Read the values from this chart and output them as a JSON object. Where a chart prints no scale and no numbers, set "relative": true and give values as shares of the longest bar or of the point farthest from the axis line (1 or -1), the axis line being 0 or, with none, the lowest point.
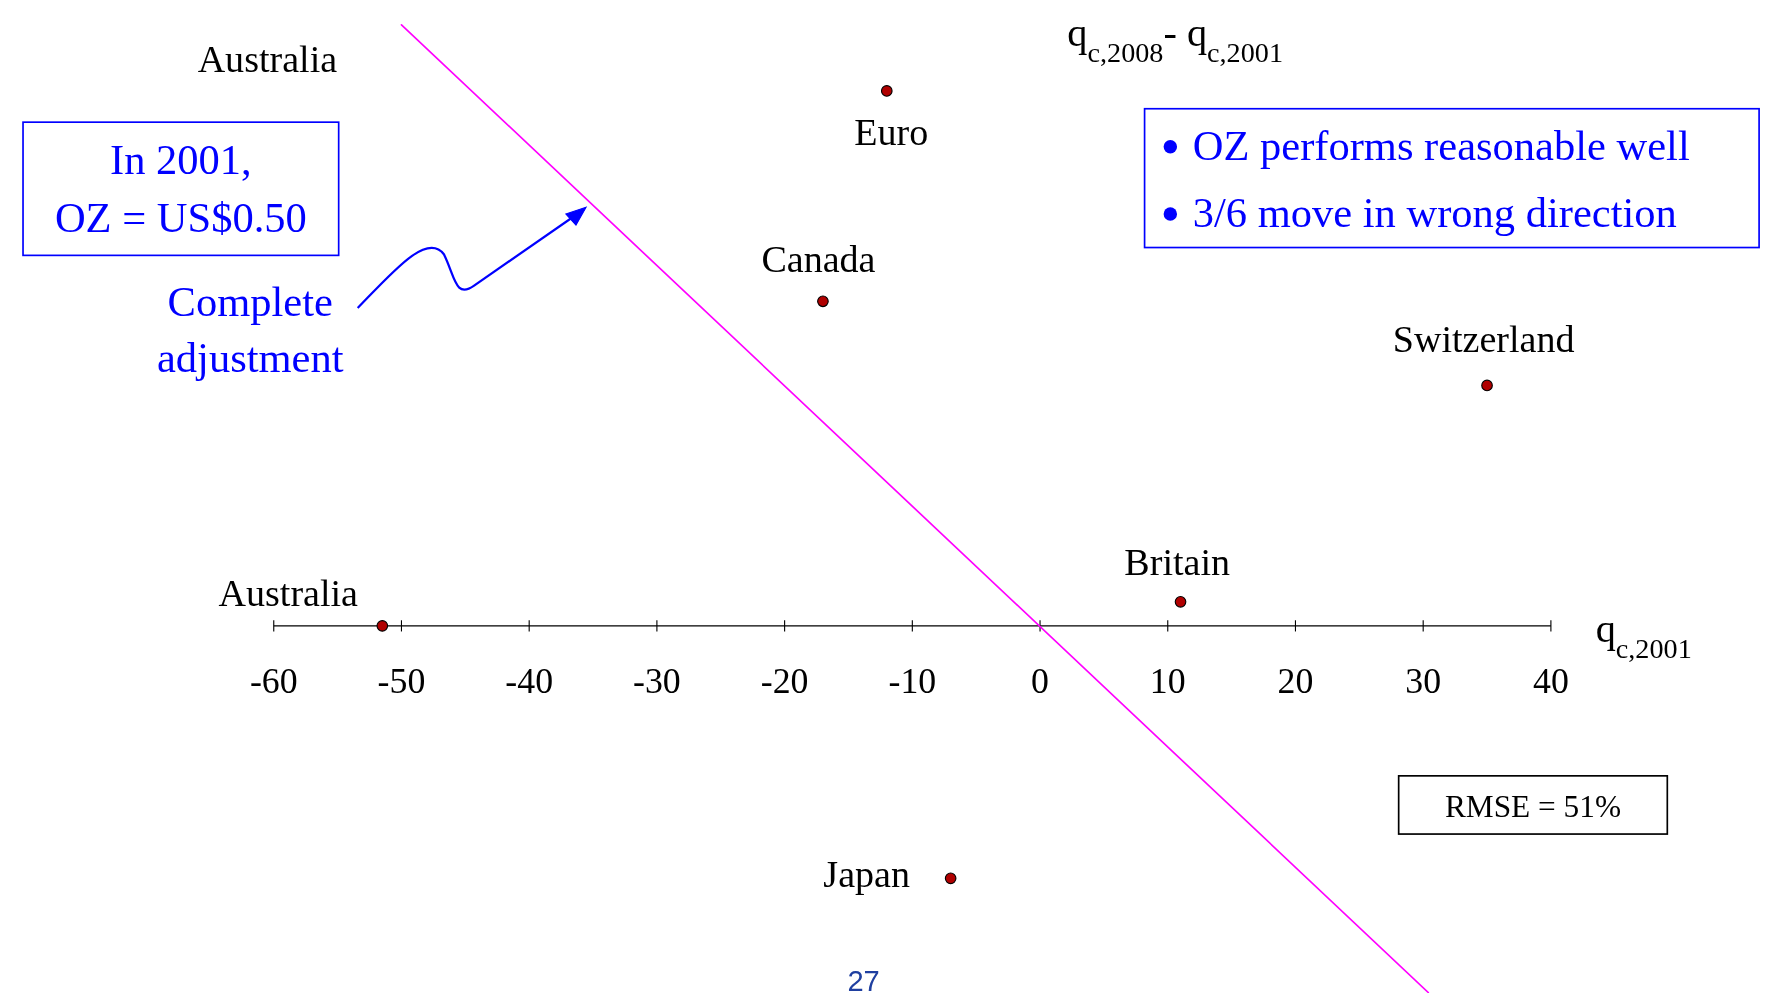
{
  "chart_data": {
    "type": "scatter",
    "title": "Australia",
    "ylabel": "q$_{c,2008}$- q$_{c,2001}$",
    "xlabel": "q$_{c,2001}$",
    "relative": true,
    "xlim": [
      -60,
      40
    ],
    "xticks": [
      -60,
      -50,
      -40,
      -30,
      -20,
      -10,
      0,
      10,
      20,
      30,
      40
    ],
    "series": [
      {
        "marker": "circle",
        "color": "#b00000",
        "x": [
          -12,
          -17,
          35,
          11,
          -51.5,
          -7
        ],
        "values": [
          0.89,
          0.54,
          0.4,
          0.04,
          0,
          -0.42
        ]
      },
      {
        "type": "line",
        "marker": "none",
        "color": "#ff00ff",
        "x": [
          -50,
          30.4
        ],
        "values": [
          1,
          -0.61
        ]
      }
    ],
    "annotations": [
      {
        "text": "Euro",
        "x": -12,
        "y": 0.89
      },
      {
        "text": "Canada",
        "x": -17,
        "y": 0.54
      },
      {
        "text": "Switzerland",
        "x": 35,
        "y": 0.4
      },
      {
        "text": "Britain",
        "x": 11,
        "y": 0.04
      },
      {
        "text": "Australia",
        "x": -51.5,
        "y": 0
      },
      {
        "text": "Japan",
        "x": -7,
        "y": -0.42
      },
      "In 2001, OZ = US$0.50",
      "Complete adjustment",
      "OZ performs reasonable well",
      "3/6 move in wrong direction",
      "RMSE = 51%",
      "27"
    ]
  }
}
